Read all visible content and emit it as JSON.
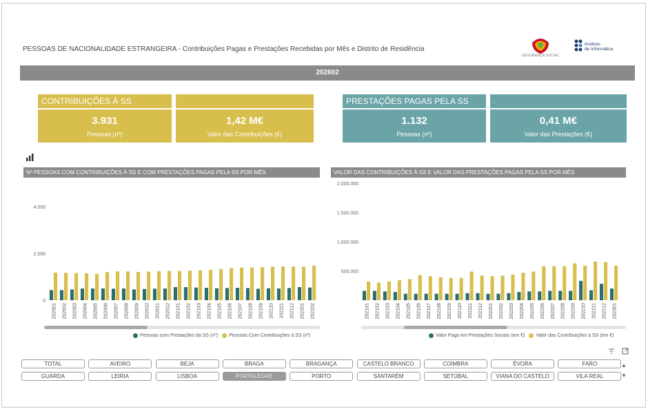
{
  "report": {
    "title": "PESSOAS DE NACIONALIDADE ESTRANGEIRA - Contribuições Pagas e Prestações Recebidas por Mês e Distrito de Residência",
    "period": "202602",
    "logo_ss_text": "SEGURANÇA SOCIAL",
    "logo_ii_text_1": "Instituto",
    "logo_ii_text_2": "de Informática"
  },
  "kpis": {
    "contrib_header": "CONTRIBUIÇÕES À SS",
    "contrib_header_2": ".",
    "contrib_people_value": "3.931",
    "contrib_people_label": "Pessoas (nº)",
    "contrib_amount_value": "1,42 M€",
    "contrib_amount_label": "Valor das Contribuições (€)",
    "prest_header": "PRESTAÇÕES PAGAS PELA SS",
    "prest_header_2": ".",
    "prest_people_value": "1.132",
    "prest_people_label": "Pessoas (nº)",
    "prest_amount_value": "0,41 M€",
    "prest_amount_label": "Valor das Prestações (€)"
  },
  "colors": {
    "gold": "#d8be4c",
    "teal": "#2e6e6a",
    "teal_light": "#6aa4a6",
    "header_gray": "#8a8a8a"
  },
  "chart_data": [
    {
      "type": "bar",
      "title": "Nº PESSOAS COM CONTRIBUIÇÕES À SS E COM PRESTAÇÕES PAGAS PELA SS POR MÊS",
      "ylim": [
        0,
        4000
      ],
      "yticks": [
        "0",
        "2.000",
        "4.000"
      ],
      "ytick_values": [
        0,
        2000,
        4000
      ],
      "categories": [
        "202001",
        "202002",
        "202003",
        "202004",
        "202005",
        "202006",
        "202007",
        "202008",
        "202009",
        "202010",
        "202011",
        "202012",
        "202101",
        "202102",
        "202103",
        "202104",
        "202105",
        "202106",
        "202107",
        "202108",
        "202109",
        "202110",
        "202111",
        "202112",
        "202201",
        "202202"
      ],
      "series": [
        {
          "name": "Pessoas com Prestações da SS (nº)",
          "color": "#2e6e6a",
          "values": [
            430,
            430,
            460,
            500,
            500,
            500,
            490,
            500,
            460,
            480,
            490,
            500,
            560,
            560,
            540,
            530,
            510,
            520,
            530,
            520,
            490,
            510,
            500,
            520,
            560,
            540
          ]
        },
        {
          "name": "Pessoas Com Contribuições  à SS (nº)",
          "color": "#d8be4c",
          "values": [
            1180,
            1170,
            1160,
            1150,
            1130,
            1200,
            1230,
            1230,
            1210,
            1220,
            1240,
            1250,
            1250,
            1260,
            1280,
            1300,
            1330,
            1370,
            1390,
            1400,
            1410,
            1430,
            1440,
            1440,
            1430,
            1480
          ]
        }
      ]
    },
    {
      "type": "bar",
      "title": "VALOR DAS CONTRIBUIÇÕES À SS E VALOR DAS PRESTAÇÕES PAGAS PELA SS POR MÊS",
      "ylim": [
        0,
        2000000
      ],
      "yticks": [
        "500.000",
        "1.000.000",
        "1.500.000",
        "2.000.000"
      ],
      "ytick_values": [
        500000,
        1000000,
        1500000,
        2000000
      ],
      "categories": [
        "202101",
        "202102",
        "202103",
        "202104",
        "202105",
        "202106",
        "202107",
        "202108",
        "202109",
        "202110",
        "202111",
        "202112",
        "202201",
        "202202",
        "202203",
        "202204",
        "202205",
        "202206",
        "202207",
        "202208",
        "202209",
        "202210",
        "202211",
        "202212",
        "202301"
      ],
      "series": [
        {
          "name": "Valor Pago em Prestações Sociais (em €)",
          "color": "#2e6e6a",
          "values": [
            160000,
            160000,
            150000,
            140000,
            110000,
            110000,
            110000,
            110000,
            110000,
            110000,
            120000,
            120000,
            110000,
            110000,
            120000,
            140000,
            150000,
            150000,
            160000,
            160000,
            160000,
            330000,
            170000,
            280000,
            200000
          ]
        },
        {
          "name": "Valor das Contribuições à SS (em €)",
          "color": "#d8be4c",
          "values": [
            320000,
            300000,
            320000,
            340000,
            360000,
            430000,
            410000,
            390000,
            380000,
            380000,
            490000,
            420000,
            410000,
            420000,
            440000,
            470000,
            490000,
            580000,
            580000,
            580000,
            630000,
            590000,
            660000,
            650000,
            590000
          ]
        }
      ]
    }
  ],
  "toolbar": {
    "filter_icon": "filter-icon",
    "focus_icon": "focus-mode-icon"
  },
  "slicer": {
    "row1": [
      "TOTAL",
      "AVEIRO",
      "BEJA",
      "BRAGA",
      "BRAGANÇA",
      "CASTELO BRANCO",
      "COIMBRA",
      "ÉVORA",
      "FARO"
    ],
    "row2": [
      "GUARDA",
      "LEIRIA",
      "LISBOA",
      "PORTALEGRE",
      "PORTO",
      "SANTARÉM",
      "SETÚBAL",
      "VIANA DO CASTELO",
      "VILA REAL"
    ],
    "selected": "PORTALEGRE"
  }
}
